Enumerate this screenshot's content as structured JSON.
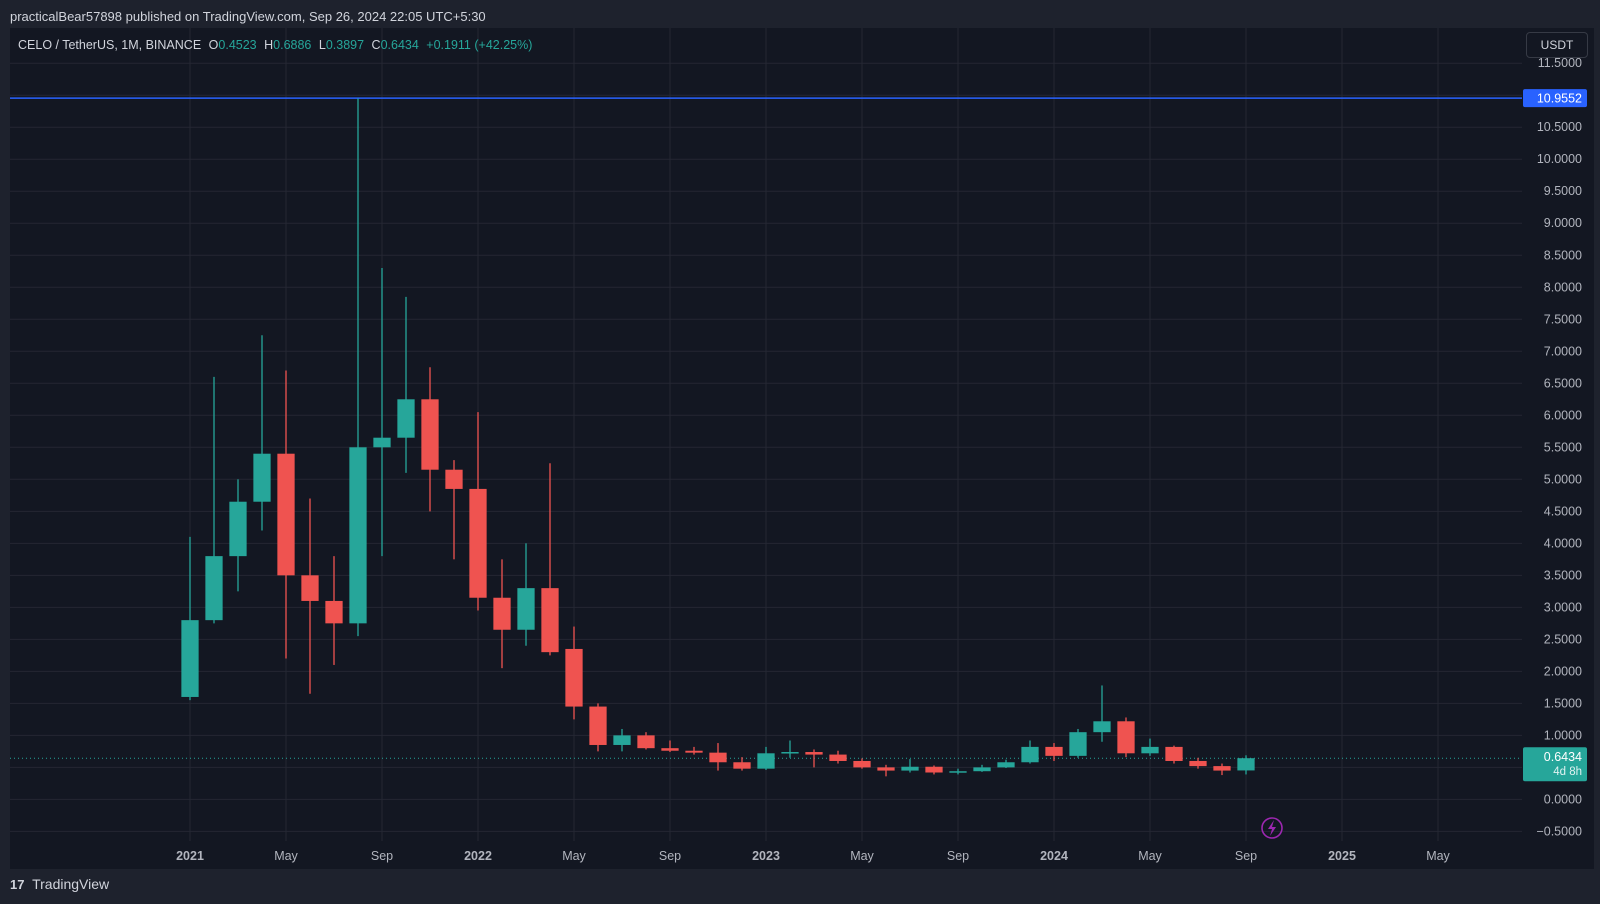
{
  "header": {
    "published_line": "practicalBear57898 published on TradingView.com, Sep 26, 2024 22:05 UTC+5:30"
  },
  "legend": {
    "symbol": "CELO / TetherUS, 1M, BINANCE",
    "o_label": "O",
    "o_value": "0.4523",
    "h_label": "H",
    "h_value": "0.6886",
    "l_label": "L",
    "l_value": "0.3897",
    "c_label": "C",
    "c_value": "0.6434",
    "change": "+0.1911 (+42.25%)"
  },
  "currency_button": "USDT",
  "footer": {
    "brand": "TradingView",
    "logo_glyph": "17"
  },
  "colors": {
    "background": "#131722",
    "up": "#26a69a",
    "down": "#ef5350",
    "horizontal_line": "#2962ff",
    "grid": "#242733"
  },
  "chart_data": {
    "type": "candlestick",
    "interval": "1M",
    "y_axis": {
      "range": [
        -0.65,
        12.05
      ],
      "ticks": [
        "-0.5000",
        "0.0000",
        "0.5000",
        "1.0000",
        "1.5000",
        "2.0000",
        "2.5000",
        "3.0000",
        "3.5000",
        "4.0000",
        "4.5000",
        "5.0000",
        "5.5000",
        "6.0000",
        "6.5000",
        "7.0000",
        "7.5000",
        "8.0000",
        "8.5000",
        "9.0000",
        "9.5000",
        "10.0000",
        "10.5000",
        "11.0000",
        "11.5000"
      ]
    },
    "x_axis": {
      "start_month": "2020-06",
      "end_month": "2025-08",
      "labels": [
        {
          "month": "2021-01",
          "text": "2021",
          "bold": true
        },
        {
          "month": "2021-05",
          "text": "May",
          "bold": false
        },
        {
          "month": "2021-09",
          "text": "Sep",
          "bold": false
        },
        {
          "month": "2022-01",
          "text": "2022",
          "bold": true
        },
        {
          "month": "2022-05",
          "text": "May",
          "bold": false
        },
        {
          "month": "2022-09",
          "text": "Sep",
          "bold": false
        },
        {
          "month": "2023-01",
          "text": "2023",
          "bold": true
        },
        {
          "month": "2023-05",
          "text": "May",
          "bold": false
        },
        {
          "month": "2023-09",
          "text": "Sep",
          "bold": false
        },
        {
          "month": "2024-01",
          "text": "2024",
          "bold": true
        },
        {
          "month": "2024-05",
          "text": "May",
          "bold": false
        },
        {
          "month": "2024-09",
          "text": "Sep",
          "bold": false
        },
        {
          "month": "2025-01",
          "text": "2025",
          "bold": true
        },
        {
          "month": "2025-05",
          "text": "May",
          "bold": false
        }
      ]
    },
    "horizontal_line": {
      "value": 10.9552,
      "label": "10.9552"
    },
    "last_price": {
      "value": 0.6434,
      "label": "0.6434",
      "countdown": "4d 8h"
    },
    "candles": [
      {
        "t": "2021-01",
        "o": 1.6,
        "h": 4.1,
        "l": 1.55,
        "c": 2.8
      },
      {
        "t": "2021-02",
        "o": 2.8,
        "h": 6.6,
        "l": 2.75,
        "c": 3.8
      },
      {
        "t": "2021-03",
        "o": 3.8,
        "h": 5.0,
        "l": 3.25,
        "c": 4.65
      },
      {
        "t": "2021-04",
        "o": 4.65,
        "h": 7.25,
        "l": 4.2,
        "c": 5.4
      },
      {
        "t": "2021-05",
        "o": 5.4,
        "h": 6.7,
        "l": 2.2,
        "c": 3.5
      },
      {
        "t": "2021-06",
        "o": 3.5,
        "h": 4.7,
        "l": 1.65,
        "c": 3.1
      },
      {
        "t": "2021-07",
        "o": 3.1,
        "h": 3.8,
        "l": 2.1,
        "c": 2.75
      },
      {
        "t": "2021-08",
        "o": 2.75,
        "h": 10.95,
        "l": 2.55,
        "c": 5.5
      },
      {
        "t": "2021-09",
        "o": 5.5,
        "h": 8.3,
        "l": 3.8,
        "c": 5.65
      },
      {
        "t": "2021-10",
        "o": 5.65,
        "h": 7.85,
        "l": 5.1,
        "c": 6.25
      },
      {
        "t": "2021-11",
        "o": 6.25,
        "h": 6.75,
        "l": 4.5,
        "c": 5.15
      },
      {
        "t": "2021-12",
        "o": 5.15,
        "h": 5.3,
        "l": 3.75,
        "c": 4.85
      },
      {
        "t": "2022-01",
        "o": 4.85,
        "h": 6.05,
        "l": 2.95,
        "c": 3.15
      },
      {
        "t": "2022-02",
        "o": 3.15,
        "h": 3.75,
        "l": 2.05,
        "c": 2.65
      },
      {
        "t": "2022-03",
        "o": 2.65,
        "h": 4.0,
        "l": 2.4,
        "c": 3.3
      },
      {
        "t": "2022-04",
        "o": 3.3,
        "h": 5.25,
        "l": 2.25,
        "c": 2.3
      },
      {
        "t": "2022-05",
        "o": 2.35,
        "h": 2.7,
        "l": 1.25,
        "c": 1.45
      },
      {
        "t": "2022-06",
        "o": 1.45,
        "h": 1.5,
        "l": 0.75,
        "c": 0.85
      },
      {
        "t": "2022-07",
        "o": 0.85,
        "h": 1.1,
        "l": 0.75,
        "c": 1.0
      },
      {
        "t": "2022-08",
        "o": 1.0,
        "h": 1.05,
        "l": 0.78,
        "c": 0.8
      },
      {
        "t": "2022-09",
        "o": 0.8,
        "h": 0.92,
        "l": 0.74,
        "c": 0.76
      },
      {
        "t": "2022-10",
        "o": 0.76,
        "h": 0.82,
        "l": 0.7,
        "c": 0.73
      },
      {
        "t": "2022-11",
        "o": 0.73,
        "h": 0.88,
        "l": 0.45,
        "c": 0.58
      },
      {
        "t": "2022-12",
        "o": 0.58,
        "h": 0.66,
        "l": 0.45,
        "c": 0.48
      },
      {
        "t": "2023-01",
        "o": 0.48,
        "h": 0.82,
        "l": 0.46,
        "c": 0.72
      },
      {
        "t": "2023-02",
        "o": 0.72,
        "h": 0.92,
        "l": 0.65,
        "c": 0.74
      },
      {
        "t": "2023-03",
        "o": 0.74,
        "h": 0.78,
        "l": 0.5,
        "c": 0.7
      },
      {
        "t": "2023-04",
        "o": 0.7,
        "h": 0.76,
        "l": 0.56,
        "c": 0.6
      },
      {
        "t": "2023-05",
        "o": 0.6,
        "h": 0.64,
        "l": 0.48,
        "c": 0.5
      },
      {
        "t": "2023-06",
        "o": 0.5,
        "h": 0.54,
        "l": 0.36,
        "c": 0.45
      },
      {
        "t": "2023-07",
        "o": 0.45,
        "h": 0.63,
        "l": 0.42,
        "c": 0.51
      },
      {
        "t": "2023-08",
        "o": 0.51,
        "h": 0.53,
        "l": 0.39,
        "c": 0.42
      },
      {
        "t": "2023-09",
        "o": 0.42,
        "h": 0.48,
        "l": 0.39,
        "c": 0.44
      },
      {
        "t": "2023-10",
        "o": 0.44,
        "h": 0.54,
        "l": 0.43,
        "c": 0.5
      },
      {
        "t": "2023-11",
        "o": 0.5,
        "h": 0.62,
        "l": 0.49,
        "c": 0.58
      },
      {
        "t": "2023-12",
        "o": 0.58,
        "h": 0.92,
        "l": 0.56,
        "c": 0.82
      },
      {
        "t": "2024-01",
        "o": 0.82,
        "h": 0.88,
        "l": 0.6,
        "c": 0.68
      },
      {
        "t": "2024-02",
        "o": 0.68,
        "h": 1.1,
        "l": 0.65,
        "c": 1.05
      },
      {
        "t": "2024-03",
        "o": 1.05,
        "h": 1.78,
        "l": 0.9,
        "c": 1.22
      },
      {
        "t": "2024-04",
        "o": 1.22,
        "h": 1.28,
        "l": 0.66,
        "c": 0.72
      },
      {
        "t": "2024-05",
        "o": 0.72,
        "h": 0.95,
        "l": 0.68,
        "c": 0.82
      },
      {
        "t": "2024-06",
        "o": 0.82,
        "h": 0.84,
        "l": 0.56,
        "c": 0.6
      },
      {
        "t": "2024-07",
        "o": 0.6,
        "h": 0.65,
        "l": 0.48,
        "c": 0.52
      },
      {
        "t": "2024-08",
        "o": 0.52,
        "h": 0.56,
        "l": 0.38,
        "c": 0.45
      },
      {
        "t": "2024-09",
        "o": 0.4523,
        "h": 0.6886,
        "l": 0.3897,
        "c": 0.6434
      }
    ]
  }
}
